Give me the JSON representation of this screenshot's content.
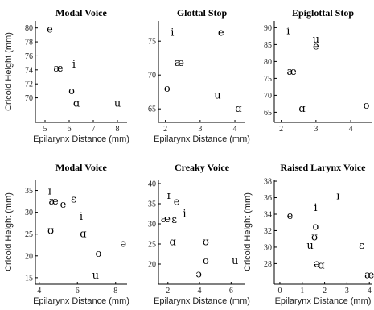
{
  "chart_data": [
    {
      "type": "scatter",
      "title": "Modal Voice",
      "xlabel": "Epilarynx Distance (mm)",
      "ylabel": "Cricoid Height (mm)",
      "xlim": [
        4.6,
        8.4
      ],
      "ylim": [
        66.5,
        81
      ],
      "xticks": [
        5,
        6,
        7,
        8
      ],
      "yticks": [
        70,
        72,
        74,
        76,
        78,
        80
      ],
      "points": [
        {
          "label": "e",
          "x": 5.2,
          "y": 79.8
        },
        {
          "label": "æ",
          "x": 5.55,
          "y": 74.2
        },
        {
          "label": "i",
          "x": 6.2,
          "y": 74.8
        },
        {
          "label": "o",
          "x": 6.1,
          "y": 71.0
        },
        {
          "label": "ɑ",
          "x": 6.3,
          "y": 69.2
        },
        {
          "label": "u",
          "x": 8.0,
          "y": 69.2
        }
      ]
    },
    {
      "type": "scatter",
      "title": "Glottal Stop",
      "xlabel": "Epilarynx Distance (mm)",
      "ylabel": "",
      "xlim": [
        1.8,
        4.3
      ],
      "ylim": [
        63,
        78
      ],
      "xticks": [
        2,
        3,
        4
      ],
      "yticks": [
        65,
        70,
        75
      ],
      "points": [
        {
          "label": "i",
          "x": 2.2,
          "y": 76.3
        },
        {
          "label": "e",
          "x": 3.6,
          "y": 76.3
        },
        {
          "label": "æ",
          "x": 2.4,
          "y": 71.8
        },
        {
          "label": "o",
          "x": 2.05,
          "y": 68.0
        },
        {
          "label": "u",
          "x": 3.5,
          "y": 67.0
        },
        {
          "label": "ɑ",
          "x": 4.1,
          "y": 65.0
        }
      ]
    },
    {
      "type": "scatter",
      "title": "Epiglottal Stop",
      "xlabel": "",
      "ylabel": "",
      "xlim": [
        1.8,
        4.6
      ],
      "ylim": [
        62,
        92
      ],
      "xticks": [
        2,
        3,
        4
      ],
      "yticks": [
        65,
        70,
        75,
        80,
        85,
        90
      ],
      "points": [
        {
          "label": "i",
          "x": 2.2,
          "y": 89.0
        },
        {
          "label": "u",
          "x": 3.0,
          "y": 86.5
        },
        {
          "label": "e",
          "x": 3.0,
          "y": 84.5
        },
        {
          "label": "æ",
          "x": 2.3,
          "y": 77.0
        },
        {
          "label": "ɑ",
          "x": 2.6,
          "y": 66.0
        },
        {
          "label": "o",
          "x": 4.45,
          "y": 67.0
        }
      ]
    },
    {
      "type": "scatter",
      "title": "Modal Voice",
      "xlabel": "Epilarynx Distance (mm)",
      "ylabel": "Cricoid Height (mm)",
      "xlim": [
        3.8,
        8.6
      ],
      "ylim": [
        13.5,
        37.5
      ],
      "xticks": [
        4,
        6,
        8
      ],
      "yticks": [
        15,
        20,
        25,
        30,
        35
      ],
      "points": [
        {
          "label": "ɪ",
          "x": 4.55,
          "y": 34.8
        },
        {
          "label": "æ",
          "x": 4.75,
          "y": 32.5
        },
        {
          "label": "ɛ",
          "x": 5.8,
          "y": 33.0
        },
        {
          "label": "e",
          "x": 5.25,
          "y": 31.8
        },
        {
          "label": "i",
          "x": 6.2,
          "y": 29.0
        },
        {
          "label": "ʊ",
          "x": 4.6,
          "y": 25.8
        },
        {
          "label": "ɑ",
          "x": 6.3,
          "y": 25.0
        },
        {
          "label": "ə",
          "x": 8.4,
          "y": 22.8
        },
        {
          "label": "o",
          "x": 7.1,
          "y": 20.5
        },
        {
          "label": "u",
          "x": 6.95,
          "y": 15.5
        }
      ]
    },
    {
      "type": "scatter",
      "title": "Creaky Voice",
      "xlabel": "Epilarynx Distance (mm)",
      "ylabel": "",
      "xlim": [
        1.4,
        6.9
      ],
      "ylim": [
        15,
        41
      ],
      "xticks": [
        2,
        4,
        6
      ],
      "yticks": [
        20,
        25,
        30,
        35,
        40
      ],
      "points": [
        {
          "label": "ɪ",
          "x": 2.05,
          "y": 37.0
        },
        {
          "label": "e",
          "x": 2.55,
          "y": 35.5
        },
        {
          "label": "i",
          "x": 3.05,
          "y": 32.5
        },
        {
          "label": "æ",
          "x": 1.85,
          "y": 31.2
        },
        {
          "label": "ɛ",
          "x": 2.4,
          "y": 31.0
        },
        {
          "label": "ɑ",
          "x": 2.3,
          "y": 25.5
        },
        {
          "label": "ʊ",
          "x": 4.4,
          "y": 25.5
        },
        {
          "label": "o",
          "x": 4.4,
          "y": 20.8
        },
        {
          "label": "u",
          "x": 6.25,
          "y": 20.8
        },
        {
          "label": "ə",
          "x": 3.95,
          "y": 17.5
        }
      ]
    },
    {
      "type": "scatter",
      "title": "Raised Larynx Voice",
      "xlabel": "Epilarynx Distance (mm)",
      "ylabel": "Cricoid Height (mm)",
      "xlim": [
        -0.25,
        4.1
      ],
      "ylim": [
        25.5,
        38.2
      ],
      "xticks": [
        0,
        1,
        2,
        3,
        4
      ],
      "yticks": [
        28,
        30,
        32,
        34,
        36,
        38
      ],
      "points": [
        {
          "label": "ɪ",
          "x": 2.6,
          "y": 36.2
        },
        {
          "label": "i",
          "x": 1.6,
          "y": 34.8
        },
        {
          "label": "e",
          "x": 0.45,
          "y": 33.8
        },
        {
          "label": "o",
          "x": 1.6,
          "y": 32.5
        },
        {
          "label": "ʊ",
          "x": 1.55,
          "y": 31.2
        },
        {
          "label": "u",
          "x": 1.35,
          "y": 30.2
        },
        {
          "label": "ɛ",
          "x": 3.65,
          "y": 30.2
        },
        {
          "label": "ə",
          "x": 1.65,
          "y": 28.0
        },
        {
          "label": "ɑ",
          "x": 1.85,
          "y": 27.8
        },
        {
          "label": "æ",
          "x": 4.0,
          "y": 26.6
        }
      ]
    }
  ]
}
